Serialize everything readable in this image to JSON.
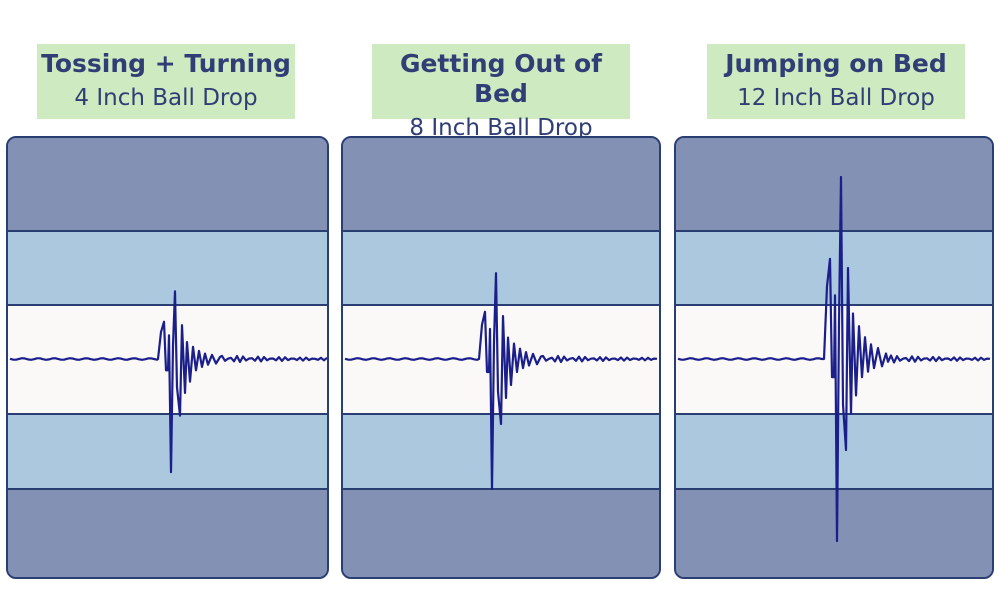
{
  "colors": {
    "label_bg": "#cdeac0",
    "label_text": "#2f3f75",
    "band_outer": "#8391b4",
    "band_mid": "#abc8de",
    "band_center": "#fbf8f8",
    "border": "#2b3e74",
    "wave": "#1a1f8a"
  },
  "chart_data": [
    {
      "type": "line",
      "title": "Tossing + Turning",
      "subtitle": "4 Inch Ball Drop",
      "series": [
        {
          "amplitude_peak_up": 0.52,
          "amplitude_peak_down": 0.87
        }
      ]
    },
    {
      "type": "line",
      "title": "Getting Out of Bed",
      "subtitle": "8 Inch Ball Drop",
      "series": [
        {
          "amplitude_peak_up": 0.66,
          "amplitude_peak_down": 1.0
        }
      ]
    },
    {
      "type": "line",
      "title": "Jumping on Bed",
      "subtitle": "12 Inch Ball Drop",
      "series": [
        {
          "amplitude_peak_up": 1.4,
          "amplitude_peak_down": 1.4
        }
      ]
    }
  ]
}
